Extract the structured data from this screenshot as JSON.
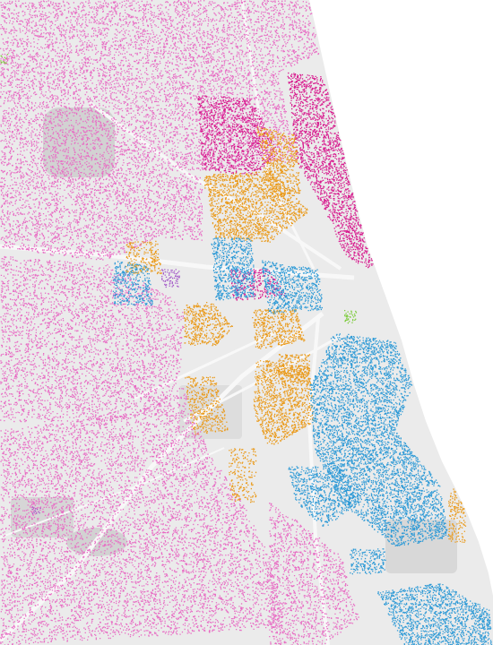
{
  "map": {
    "colors": {
      "background": "#ffffff",
      "land": "#ebebeb",
      "land_dark": "#d2d2d2",
      "road": "#f8f8f8",
      "magenta": "#d81c8f",
      "pink": "#e86cc4",
      "orange": "#ea9a1a",
      "blue": "#2e9ad6",
      "green": "#7ccc3a",
      "purple": "#a45ac8"
    }
  }
}
